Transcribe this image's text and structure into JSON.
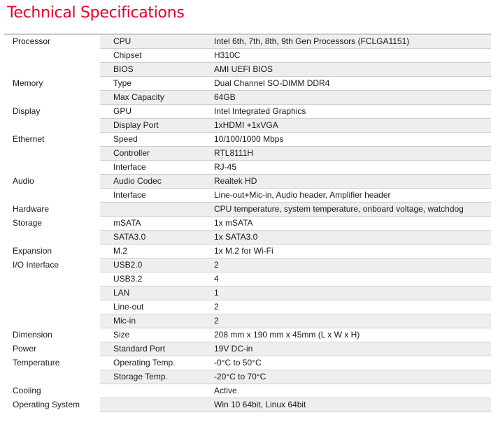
{
  "title": "Technical Specifications",
  "colors": {
    "title": "#e4002b",
    "row_shade": "#eeeef0"
  },
  "rows": [
    {
      "category": "Processor",
      "item": "CPU",
      "value": "Intel 6th, 7th, 8th, 9th Gen Processors (FCLGA1151)"
    },
    {
      "category": "",
      "item": "Chipset",
      "value": "H310C"
    },
    {
      "category": "",
      "item": "BIOS",
      "value": "AMI UEFI BIOS"
    },
    {
      "category": "Memory",
      "item": "Type",
      "value": "Dual Channel SO-DIMM DDR4"
    },
    {
      "category": "",
      "item": "Max Capacity",
      "value": "64GB"
    },
    {
      "category": "Display",
      "item": "GPU",
      "value": "Intel Integrated Graphics"
    },
    {
      "category": "",
      "item": "Display Port",
      "value": "1xHDMI +1xVGA"
    },
    {
      "category": "Ethernet",
      "item": "Speed",
      "value": "10/100/1000 Mbps"
    },
    {
      "category": "",
      "item": "Controller",
      "value": "RTL8111H"
    },
    {
      "category": "",
      "item": "Interface",
      "value": "RJ-45"
    },
    {
      "category": "Audio",
      "item": "Audio Codec",
      "value": "Realtek HD"
    },
    {
      "category": "",
      "item": "Interface",
      "value": "Line-out+Mic-in, Audio header, Amplifier header"
    },
    {
      "category": "Hardware",
      "item": "",
      "value": "CPU temperature, system temperature, onboard voltage, watchdog"
    },
    {
      "category": "Storage",
      "item": "mSATA",
      "value": "1x mSATA"
    },
    {
      "category": "",
      "item": "SATA3.0",
      "value": "1x SATA3.0"
    },
    {
      "category": "Expansion",
      "item": "M.2",
      "value": "1x M.2 for Wi-Fi"
    },
    {
      "category": "I/O Interface",
      "item": "USB2.0",
      "value": "2"
    },
    {
      "category": "",
      "item": "USB3.2",
      "value": "4"
    },
    {
      "category": "",
      "item": "LAN",
      "value": "1"
    },
    {
      "category": "",
      "item": "Line-out",
      "value": "2"
    },
    {
      "category": "",
      "item": "Mic-in",
      "value": "2"
    },
    {
      "category": "Dimension",
      "item": "Size",
      "value": "208 mm x 190 mm x 45mm (L x W x H)"
    },
    {
      "category": "Power",
      "item": "Standard Port",
      "value": "19V DC-in"
    },
    {
      "category": "Temperature",
      "item": "Operating Temp.",
      "value": "-0°C to 50°C"
    },
    {
      "category": "",
      "item": "Storage Temp.",
      "value": "-20°C to 70°C"
    },
    {
      "category": "Cooling",
      "item": "",
      "value": "Active"
    },
    {
      "category": "Operating System",
      "item": "",
      "value": "Win 10 64bit, Linux 64bit"
    }
  ]
}
